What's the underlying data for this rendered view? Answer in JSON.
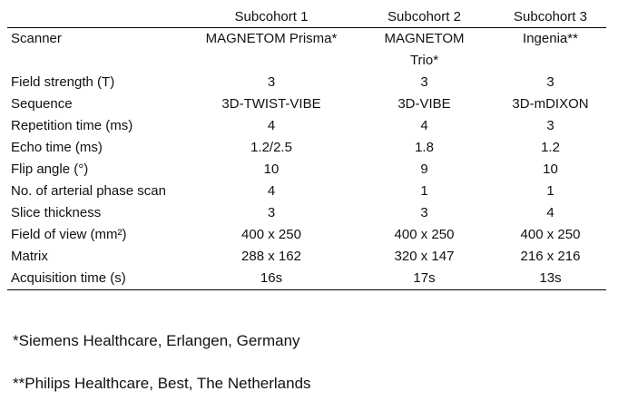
{
  "table": {
    "header": [
      "Subcohort 1",
      "Subcohort 2",
      "Subcohort 3"
    ],
    "rows": [
      [
        "Scanner",
        "MAGNETOM Prisma*",
        "MAGNETOM Trio*",
        "Ingenia**"
      ],
      [
        "Field strength (T)",
        "3",
        "3",
        "3"
      ],
      [
        "Sequence",
        "3D-TWIST-VIBE",
        "3D-VIBE",
        "3D-mDIXON"
      ],
      [
        "Repetition time (ms)",
        "4",
        "4",
        "3"
      ],
      [
        "Echo time (ms)",
        "1.2/2.5",
        "1.8",
        "1.2"
      ],
      [
        "Flip angle (°)",
        "10",
        "9",
        "10"
      ],
      [
        "No. of arterial phase scan",
        "4",
        "1",
        "1"
      ],
      [
        "Slice thickness",
        "3",
        "3",
        "4"
      ],
      [
        "Field of view (mm²)",
        "400 x 250",
        "400 x 250",
        "400 x 250"
      ],
      [
        "Matrix",
        "288 x 162",
        "320 x 147",
        "216 x 216"
      ],
      [
        "Acquisition time (s)",
        "16s",
        "17s",
        "13s"
      ]
    ]
  },
  "footnotes": [
    "*Siemens Healthcare, Erlangen, Germany",
    "**Philips Healthcare, Best, The Netherlands"
  ]
}
